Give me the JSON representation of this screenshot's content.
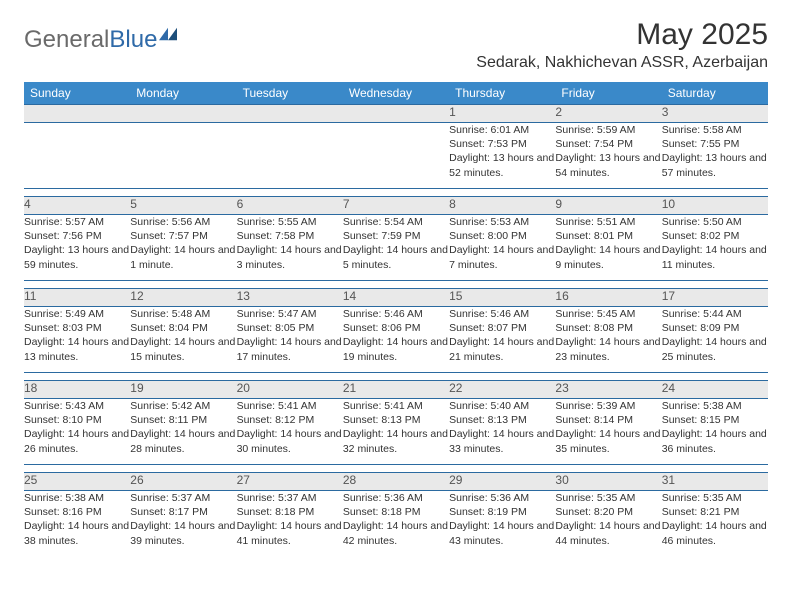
{
  "brand": {
    "part1": "General",
    "part2": "Blue"
  },
  "title": "May 2025",
  "location": "Sedarak, Nakhichevan ASSR, Azerbaijan",
  "colors": {
    "header_bg": "#3a89c9",
    "header_text": "#ffffff",
    "daynum_bg": "#e9e9e9",
    "rule": "#2b6aa0",
    "body_text": "#333333",
    "brand_grey": "#6a6a6a",
    "brand_blue": "#2f6aa8"
  },
  "weekdays": [
    "Sunday",
    "Monday",
    "Tuesday",
    "Wednesday",
    "Thursday",
    "Friday",
    "Saturday"
  ],
  "weeks": [
    {
      "nums": [
        "",
        "",
        "",
        "",
        "1",
        "2",
        "3"
      ],
      "cells": [
        null,
        null,
        null,
        null,
        {
          "sr": "6:01 AM",
          "ss": "7:53 PM",
          "dl": "13 hours and 52 minutes."
        },
        {
          "sr": "5:59 AM",
          "ss": "7:54 PM",
          "dl": "13 hours and 54 minutes."
        },
        {
          "sr": "5:58 AM",
          "ss": "7:55 PM",
          "dl": "13 hours and 57 minutes."
        }
      ]
    },
    {
      "nums": [
        "4",
        "5",
        "6",
        "7",
        "8",
        "9",
        "10"
      ],
      "cells": [
        {
          "sr": "5:57 AM",
          "ss": "7:56 PM",
          "dl": "13 hours and 59 minutes."
        },
        {
          "sr": "5:56 AM",
          "ss": "7:57 PM",
          "dl": "14 hours and 1 minute."
        },
        {
          "sr": "5:55 AM",
          "ss": "7:58 PM",
          "dl": "14 hours and 3 minutes."
        },
        {
          "sr": "5:54 AM",
          "ss": "7:59 PM",
          "dl": "14 hours and 5 minutes."
        },
        {
          "sr": "5:53 AM",
          "ss": "8:00 PM",
          "dl": "14 hours and 7 minutes."
        },
        {
          "sr": "5:51 AM",
          "ss": "8:01 PM",
          "dl": "14 hours and 9 minutes."
        },
        {
          "sr": "5:50 AM",
          "ss": "8:02 PM",
          "dl": "14 hours and 11 minutes."
        }
      ]
    },
    {
      "nums": [
        "11",
        "12",
        "13",
        "14",
        "15",
        "16",
        "17"
      ],
      "cells": [
        {
          "sr": "5:49 AM",
          "ss": "8:03 PM",
          "dl": "14 hours and 13 minutes."
        },
        {
          "sr": "5:48 AM",
          "ss": "8:04 PM",
          "dl": "14 hours and 15 minutes."
        },
        {
          "sr": "5:47 AM",
          "ss": "8:05 PM",
          "dl": "14 hours and 17 minutes."
        },
        {
          "sr": "5:46 AM",
          "ss": "8:06 PM",
          "dl": "14 hours and 19 minutes."
        },
        {
          "sr": "5:46 AM",
          "ss": "8:07 PM",
          "dl": "14 hours and 21 minutes."
        },
        {
          "sr": "5:45 AM",
          "ss": "8:08 PM",
          "dl": "14 hours and 23 minutes."
        },
        {
          "sr": "5:44 AM",
          "ss": "8:09 PM",
          "dl": "14 hours and 25 minutes."
        }
      ]
    },
    {
      "nums": [
        "18",
        "19",
        "20",
        "21",
        "22",
        "23",
        "24"
      ],
      "cells": [
        {
          "sr": "5:43 AM",
          "ss": "8:10 PM",
          "dl": "14 hours and 26 minutes."
        },
        {
          "sr": "5:42 AM",
          "ss": "8:11 PM",
          "dl": "14 hours and 28 minutes."
        },
        {
          "sr": "5:41 AM",
          "ss": "8:12 PM",
          "dl": "14 hours and 30 minutes."
        },
        {
          "sr": "5:41 AM",
          "ss": "8:13 PM",
          "dl": "14 hours and 32 minutes."
        },
        {
          "sr": "5:40 AM",
          "ss": "8:13 PM",
          "dl": "14 hours and 33 minutes."
        },
        {
          "sr": "5:39 AM",
          "ss": "8:14 PM",
          "dl": "14 hours and 35 minutes."
        },
        {
          "sr": "5:38 AM",
          "ss": "8:15 PM",
          "dl": "14 hours and 36 minutes."
        }
      ]
    },
    {
      "nums": [
        "25",
        "26",
        "27",
        "28",
        "29",
        "30",
        "31"
      ],
      "cells": [
        {
          "sr": "5:38 AM",
          "ss": "8:16 PM",
          "dl": "14 hours and 38 minutes."
        },
        {
          "sr": "5:37 AM",
          "ss": "8:17 PM",
          "dl": "14 hours and 39 minutes."
        },
        {
          "sr": "5:37 AM",
          "ss": "8:18 PM",
          "dl": "14 hours and 41 minutes."
        },
        {
          "sr": "5:36 AM",
          "ss": "8:18 PM",
          "dl": "14 hours and 42 minutes."
        },
        {
          "sr": "5:36 AM",
          "ss": "8:19 PM",
          "dl": "14 hours and 43 minutes."
        },
        {
          "sr": "5:35 AM",
          "ss": "8:20 PM",
          "dl": "14 hours and 44 minutes."
        },
        {
          "sr": "5:35 AM",
          "ss": "8:21 PM",
          "dl": "14 hours and 46 minutes."
        }
      ]
    }
  ],
  "labels": {
    "sunrise": "Sunrise:",
    "sunset": "Sunset:",
    "daylight": "Daylight:"
  }
}
